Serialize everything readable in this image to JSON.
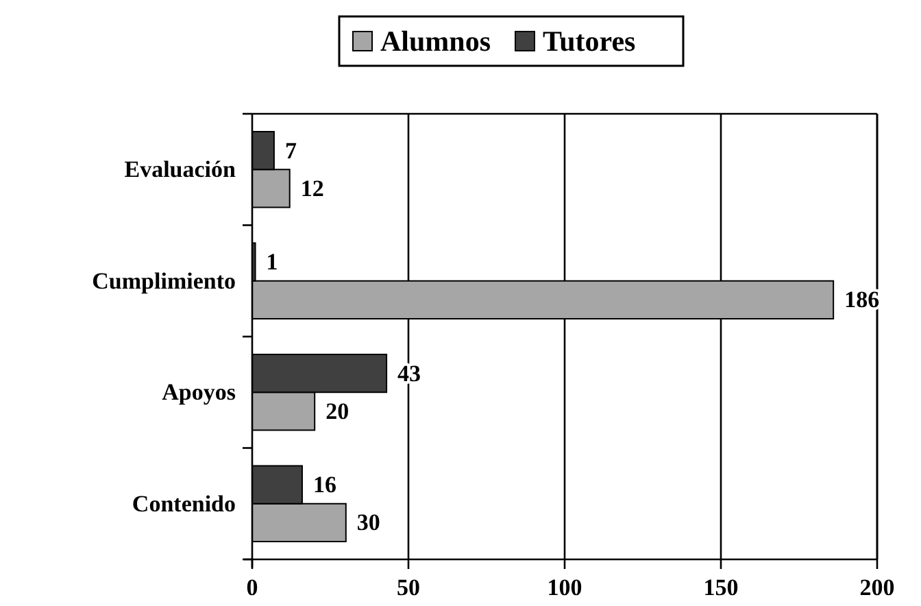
{
  "chart_data": {
    "type": "bar",
    "orientation": "horizontal",
    "categories": [
      "Evaluación",
      "Cumplimiento",
      "Apoyos",
      "Contenido"
    ],
    "series": [
      {
        "name": "Alumnos",
        "color": "#a6a6a6",
        "values": [
          12,
          186,
          20,
          30
        ]
      },
      {
        "name": "Tutores",
        "color": "#404040",
        "values": [
          7,
          1,
          43,
          16
        ]
      }
    ],
    "xlim": [
      0,
      200
    ],
    "xticks": [
      0,
      50,
      100,
      150,
      200
    ],
    "grid": "x",
    "legend": "top",
    "data_labels": true
  }
}
